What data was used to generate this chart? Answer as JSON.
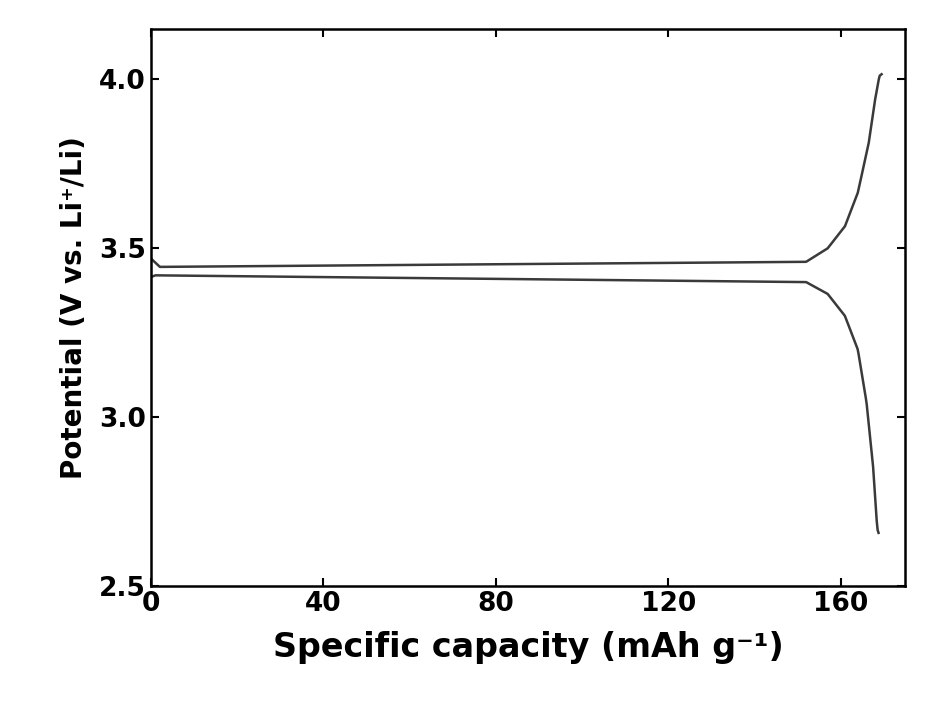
{
  "title": "",
  "xlabel": "Specific capacity (mAh g⁻¹)",
  "ylabel": "Potential (V vs. Li⁺/Li)",
  "xlim": [
    0,
    175
  ],
  "ylim": [
    2.5,
    4.15
  ],
  "xticks": [
    0,
    40,
    80,
    120,
    160
  ],
  "yticks": [
    2.5,
    3.0,
    3.5,
    4.0
  ],
  "line_color": "#3a3a3a",
  "line_width": 1.8,
  "background_color": "#ffffff",
  "xlabel_fontsize": 24,
  "ylabel_fontsize": 20,
  "tick_fontsize": 19,
  "figsize": [
    9.43,
    7.15
  ],
  "dpi": 100
}
